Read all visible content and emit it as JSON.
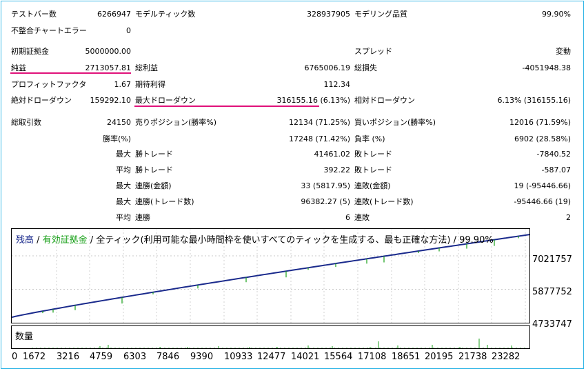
{
  "stats": {
    "rows": [
      {
        "l1": "テストバー数",
        "v1": "6266947",
        "l2": "モデルティック数",
        "v2": "328937905",
        "l3": "モデリング品質",
        "v3": "99.90%"
      },
      {
        "l1": "不整合チャートエラー",
        "v1": "0",
        "l2": "",
        "v2": "",
        "l3": "",
        "v3": ""
      },
      {
        "l1": "初期証拠金",
        "v1": "5000000.00",
        "l2": "",
        "v2": "",
        "l3": "スプレッド",
        "v3": "変動"
      },
      {
        "l1": "純益",
        "v1": "2713057.81",
        "l2": "総利益",
        "v2": "6765006.19",
        "l3": "総損失",
        "v3": "-4051948.38"
      },
      {
        "l1": "プロフィットファクタ",
        "v1": "1.67",
        "l2": "期待利得",
        "v2": "112.34",
        "l3": "",
        "v3": ""
      },
      {
        "l1": "絶対ドローダウン",
        "v1": "159292.10",
        "l2": "最大ドローダウン",
        "v2": "316155.16 (6.13%)",
        "l3": "相対ドローダウン",
        "v3": "6.13% (316155.16)"
      },
      {
        "l1": "総取引数",
        "v1": "24150",
        "l2": "売りポジション(勝率%)",
        "v2": "12134 (71.25%)",
        "l3": "買いポジション(勝率%)",
        "v3": "12016 (71.59%)"
      },
      {
        "l1": "",
        "v1": "勝率(%)",
        "l2": "",
        "v2": "17248 (71.42%)",
        "l3": "負率 (%)",
        "v3": "6902 (28.58%)"
      },
      {
        "l1": "",
        "v1": "最大",
        "l2": "勝トレード",
        "v2": "41461.02",
        "l3": "敗トレード",
        "v3": "-7840.52"
      },
      {
        "l1": "",
        "v1": "平均",
        "l2": "勝トレード",
        "v2": "392.22",
        "l3": "敗トレード",
        "v3": "-587.07"
      },
      {
        "l1": "",
        "v1": "最大",
        "l2": "連勝(金額)",
        "v2": "33 (5817.95)",
        "l3": "連敗(金額)",
        "v3": "19 (-95446.66)"
      },
      {
        "l1": "",
        "v1": "最大",
        "l2": "連勝(トレード数)",
        "v2": "96382.27 (5)",
        "l3": "連敗(トレード数)",
        "v3": "-95446.66 (19)"
      },
      {
        "l1": "",
        "v1": "平均",
        "l2": "連勝",
        "v2": "6",
        "l3": "連敗",
        "v3": "2"
      }
    ]
  },
  "chart": {
    "legend_balance": "残高",
    "legend_sep": " / ",
    "legend_equity": "有効証拠金",
    "legend_rest": " / 全ティック(利用可能な最小時間枠を使いすべてのティックを生成する、最も正確な方法) / 99.90%",
    "colors": {
      "balance": "#1a2a8c",
      "equity": "#18a018",
      "volume": "#18a018",
      "highlight": "#e0107a",
      "frame": "#33b6e6"
    }
  },
  "chart_data": {
    "type": "line",
    "series": [
      {
        "name": "残高",
        "x": [
          0,
          23282
        ],
        "y": [
          4920000,
          7750000
        ]
      }
    ],
    "y_ticks": [
      "7021757",
      "5877752",
      "4733747"
    ],
    "ylim": [
      4733747,
      7800000
    ],
    "xlim": [
      0,
      24150
    ],
    "x_ticks": [
      "0",
      "1672",
      "3216",
      "4759",
      "6303",
      "7846",
      "9390",
      "10933",
      "12477",
      "14021",
      "15564",
      "17108",
      "18651",
      "20195",
      "21738",
      "23282"
    ]
  },
  "volume": {
    "label": "数量"
  }
}
